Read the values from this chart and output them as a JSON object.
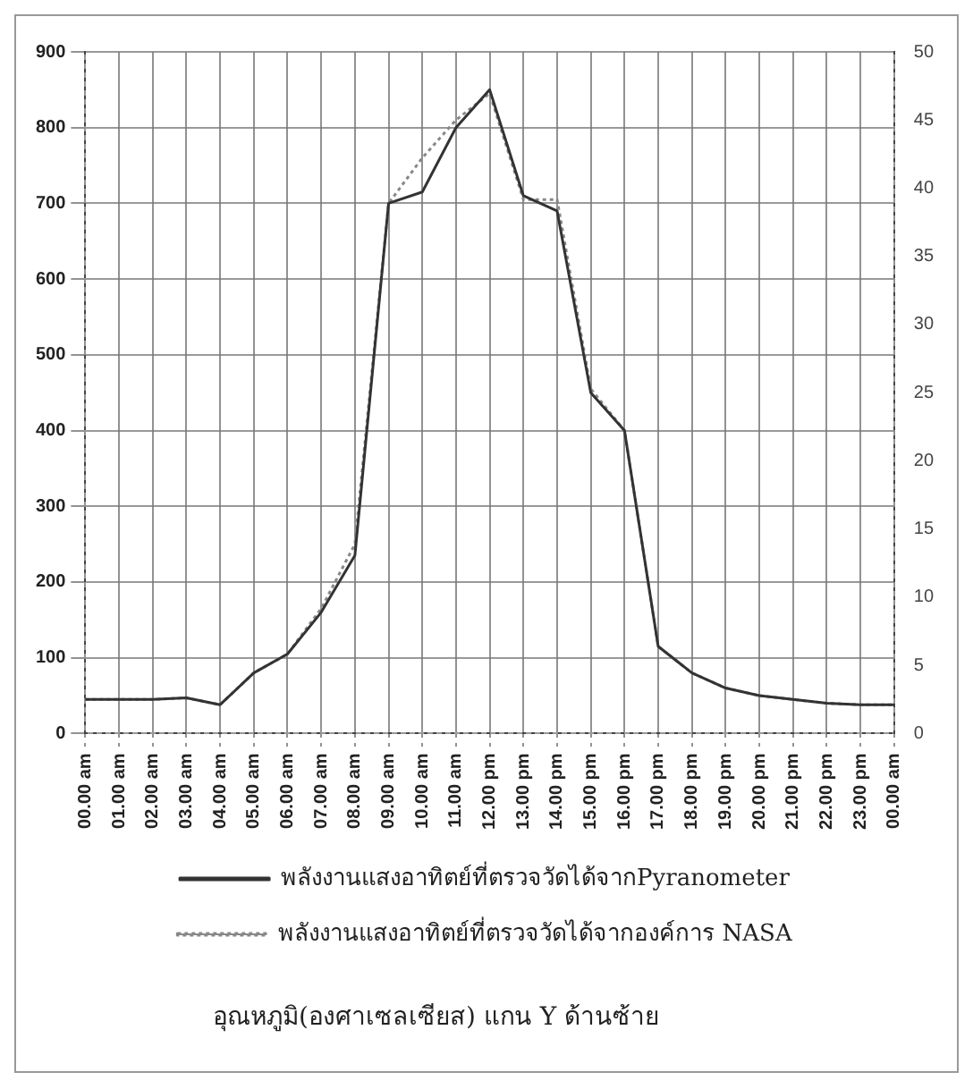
{
  "chart_data": {
    "type": "line",
    "categories": [
      "00.00 am",
      "01.00 am",
      "02.00 am",
      "03.00 am",
      "04.00 am",
      "05.00 am",
      "06.00 am",
      "07.00 am",
      "08.00 am",
      "09.00 am",
      "10.00 am",
      "11.00 am",
      "12.00 pm",
      "13.00 pm",
      "14.00 pm",
      "15.00 pm",
      "16.00 pm",
      "17.00 pm",
      "18.00 pm",
      "19.00 pm",
      "20.00 pm",
      "21.00 pm",
      "22.00 pm",
      "23.00 pm",
      "00.00 am"
    ],
    "series": [
      {
        "name": "พลังงานแสงอาทิตย์ที่ตรวจวัดได้จากPyranometer",
        "color": "#333333",
        "line_style": "solid",
        "values": [
          45,
          45,
          45,
          47,
          38,
          80,
          105,
          160,
          235,
          700,
          715,
          800,
          850,
          710,
          690,
          450,
          400,
          115,
          80,
          60,
          50,
          45,
          40,
          38,
          38
        ]
      },
      {
        "name": "พลังงานแสงอาทิตย์ที่ตรวจวัดได้จากองค์การ NASA",
        "color": "#888888",
        "line_style": "dotted",
        "values": [
          45,
          45,
          45,
          47,
          38,
          80,
          105,
          165,
          250,
          700,
          760,
          810,
          845,
          705,
          705,
          455,
          400,
          115,
          80,
          60,
          50,
          45,
          40,
          38,
          38
        ]
      }
    ],
    "ylim": [
      0,
      900
    ],
    "yticks": [
      0,
      100,
      200,
      300,
      400,
      500,
      600,
      700,
      800,
      900
    ],
    "y2lim": [
      0,
      50
    ],
    "y2ticks": [
      0,
      5,
      10,
      15,
      20,
      25,
      30,
      35,
      40,
      45,
      50
    ],
    "grid": true,
    "legend": "bottom",
    "marker": "none",
    "annotations": [
      "อุณหภูมิ(องศาเซลเซียส) แกน Y ด้านซ้าย"
    ]
  }
}
